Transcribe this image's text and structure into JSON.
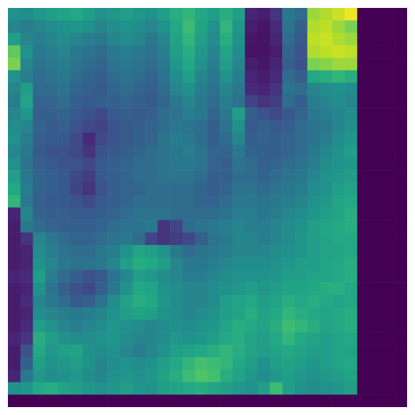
{
  "chart_data": {
    "type": "heatmap",
    "color": "viridis",
    "tick_labels": false,
    "vlim": [
      0,
      100
    ],
    "cells": [
      [
        50,
        48,
        52,
        55,
        58,
        60,
        55,
        50,
        52,
        55,
        52,
        50,
        55,
        62,
        65,
        60,
        55,
        62,
        55,
        10,
        8,
        15,
        40,
        35,
        85,
        88,
        92,
        98,
        0,
        0,
        0,
        0
      ],
      [
        45,
        42,
        45,
        48,
        50,
        52,
        50,
        45,
        48,
        50,
        48,
        45,
        50,
        60,
        68,
        58,
        50,
        65,
        52,
        8,
        6,
        12,
        38,
        30,
        88,
        90,
        85,
        80,
        0,
        0,
        0,
        0
      ],
      [
        55,
        45,
        42,
        45,
        48,
        45,
        42,
        40,
        45,
        48,
        45,
        40,
        45,
        58,
        65,
        55,
        48,
        62,
        50,
        6,
        5,
        10,
        35,
        28,
        90,
        92,
        88,
        85,
        0,
        0,
        0,
        0
      ],
      [
        75,
        50,
        40,
        42,
        45,
        40,
        38,
        35,
        40,
        42,
        40,
        38,
        42,
        55,
        62,
        52,
        45,
        58,
        48,
        5,
        5,
        8,
        32,
        25,
        88,
        90,
        92,
        90,
        0,
        0,
        0,
        0
      ],
      [
        80,
        45,
        38,
        40,
        42,
        38,
        35,
        32,
        38,
        40,
        38,
        35,
        40,
        52,
        60,
        50,
        42,
        55,
        45,
        8,
        6,
        10,
        30,
        25,
        80,
        82,
        85,
        85,
        0,
        0,
        0,
        0
      ],
      [
        50,
        42,
        35,
        38,
        40,
        35,
        32,
        30,
        35,
        38,
        35,
        32,
        38,
        48,
        55,
        45,
        40,
        50,
        42,
        10,
        8,
        12,
        35,
        30,
        60,
        62,
        65,
        62,
        0,
        0,
        0,
        0
      ],
      [
        45,
        55,
        35,
        35,
        38,
        32,
        30,
        28,
        32,
        35,
        32,
        30,
        35,
        45,
        50,
        42,
        38,
        45,
        40,
        12,
        10,
        15,
        38,
        35,
        45,
        48,
        50,
        48,
        0,
        0,
        0,
        0
      ],
      [
        42,
        58,
        32,
        32,
        35,
        30,
        28,
        30,
        30,
        32,
        30,
        28,
        32,
        40,
        45,
        40,
        35,
        42,
        38,
        20,
        15,
        18,
        35,
        30,
        42,
        45,
        48,
        45,
        0,
        0,
        0,
        0
      ],
      [
        45,
        52,
        30,
        30,
        32,
        28,
        25,
        22,
        28,
        30,
        28,
        30,
        35,
        38,
        42,
        40,
        32,
        40,
        55,
        30,
        25,
        22,
        28,
        32,
        40,
        42,
        45,
        48,
        0,
        0,
        0,
        0
      ],
      [
        48,
        45,
        32,
        28,
        30,
        25,
        22,
        20,
        25,
        28,
        30,
        32,
        35,
        40,
        38,
        35,
        30,
        38,
        50,
        28,
        30,
        28,
        30,
        35,
        38,
        40,
        45,
        50,
        0,
        0,
        0,
        0
      ],
      [
        50,
        42,
        30,
        28,
        28,
        22,
        12,
        22,
        25,
        28,
        30,
        32,
        38,
        42,
        40,
        35,
        30,
        35,
        45,
        30,
        32,
        30,
        32,
        35,
        38,
        42,
        48,
        52,
        0,
        0,
        0,
        0
      ],
      [
        45,
        40,
        28,
        25,
        25,
        22,
        15,
        25,
        28,
        30,
        32,
        35,
        38,
        40,
        42,
        38,
        32,
        32,
        40,
        32,
        30,
        30,
        32,
        35,
        40,
        45,
        50,
        55,
        0,
        0,
        0,
        0
      ],
      [
        50,
        38,
        30,
        28,
        25,
        25,
        22,
        28,
        30,
        32,
        35,
        35,
        38,
        40,
        40,
        38,
        32,
        30,
        38,
        35,
        30,
        32,
        35,
        38,
        42,
        48,
        50,
        52,
        0,
        0,
        0,
        0
      ],
      [
        55,
        40,
        32,
        30,
        28,
        22,
        18,
        28,
        30,
        32,
        35,
        35,
        38,
        38,
        38,
        35,
        30,
        30,
        35,
        35,
        32,
        35,
        38,
        40,
        45,
        50,
        52,
        55,
        0,
        0,
        0,
        0
      ],
      [
        60,
        42,
        32,
        30,
        28,
        20,
        15,
        25,
        30,
        32,
        32,
        35,
        35,
        35,
        35,
        32,
        30,
        32,
        38,
        38,
        35,
        38,
        40,
        42,
        48,
        50,
        55,
        58,
        0,
        0,
        0,
        0
      ],
      [
        65,
        40,
        30,
        28,
        28,
        25,
        22,
        28,
        30,
        32,
        35,
        35,
        35,
        35,
        35,
        32,
        32,
        35,
        40,
        40,
        38,
        40,
        42,
        45,
        50,
        52,
        58,
        60,
        0,
        0,
        0,
        0
      ],
      [
        10,
        45,
        32,
        30,
        30,
        28,
        28,
        30,
        32,
        35,
        38,
        38,
        38,
        35,
        35,
        35,
        35,
        38,
        42,
        42,
        40,
        42,
        45,
        48,
        52,
        55,
        58,
        62,
        0,
        0,
        0,
        0
      ],
      [
        8,
        40,
        35,
        32,
        30,
        30,
        30,
        32,
        35,
        38,
        38,
        40,
        15,
        20,
        35,
        38,
        40,
        42,
        45,
        42,
        42,
        45,
        48,
        50,
        55,
        58,
        60,
        62,
        0,
        0,
        0,
        0
      ],
      [
        8,
        15,
        45,
        40,
        35,
        32,
        32,
        35,
        38,
        40,
        35,
        20,
        15,
        18,
        22,
        30,
        38,
        40,
        45,
        45,
        42,
        45,
        48,
        52,
        55,
        58,
        60,
        60,
        0,
        0,
        0,
        0
      ],
      [
        8,
        10,
        48,
        42,
        38,
        35,
        35,
        40,
        42,
        50,
        58,
        55,
        50,
        40,
        35,
        38,
        40,
        42,
        45,
        45,
        45,
        48,
        50,
        52,
        55,
        58,
        58,
        60,
        0,
        0,
        0,
        0
      ],
      [
        8,
        10,
        50,
        45,
        40,
        38,
        38,
        40,
        45,
        55,
        62,
        60,
        55,
        45,
        40,
        40,
        42,
        45,
        48,
        48,
        48,
        50,
        52,
        55,
        55,
        58,
        60,
        62,
        0,
        0,
        0,
        0
      ],
      [
        10,
        12,
        55,
        42,
        35,
        30,
        25,
        28,
        38,
        45,
        55,
        52,
        48,
        45,
        42,
        42,
        45,
        48,
        50,
        50,
        50,
        52,
        55,
        55,
        58,
        58,
        60,
        62,
        0,
        0,
        0,
        0
      ],
      [
        8,
        10,
        50,
        38,
        30,
        25,
        22,
        30,
        40,
        50,
        60,
        58,
        50,
        48,
        45,
        45,
        48,
        50,
        52,
        55,
        52,
        55,
        58,
        58,
        60,
        62,
        62,
        60,
        0,
        0,
        0,
        0
      ],
      [
        8,
        12,
        45,
        40,
        35,
        28,
        30,
        38,
        48,
        58,
        62,
        60,
        52,
        48,
        45,
        45,
        48,
        55,
        58,
        60,
        55,
        58,
        62,
        60,
        62,
        60,
        58,
        60,
        0,
        0,
        0,
        0
      ],
      [
        8,
        10,
        48,
        45,
        42,
        40,
        42,
        45,
        50,
        55,
        58,
        55,
        50,
        48,
        45,
        48,
        50,
        55,
        58,
        62,
        58,
        60,
        65,
        62,
        60,
        58,
        60,
        62,
        0,
        0,
        0,
        0
      ],
      [
        8,
        12,
        55,
        50,
        45,
        42,
        45,
        48,
        52,
        50,
        48,
        45,
        48,
        50,
        48,
        50,
        52,
        58,
        62,
        60,
        58,
        62,
        68,
        65,
        62,
        58,
        60,
        62,
        0,
        0,
        0,
        0
      ],
      [
        10,
        15,
        62,
        55,
        50,
        48,
        48,
        50,
        52,
        48,
        45,
        45,
        48,
        52,
        50,
        52,
        55,
        60,
        62,
        58,
        55,
        60,
        65,
        60,
        58,
        55,
        58,
        60,
        0,
        0,
        0,
        0
      ],
      [
        8,
        25,
        60,
        52,
        55,
        58,
        50,
        48,
        50,
        45,
        42,
        45,
        50,
        55,
        58,
        60,
        62,
        65,
        62,
        58,
        55,
        58,
        60,
        58,
        55,
        55,
        58,
        58,
        0,
        0,
        0,
        0
      ],
      [
        8,
        30,
        55,
        50,
        52,
        55,
        50,
        45,
        48,
        50,
        48,
        50,
        55,
        60,
        65,
        70,
        68,
        65,
        60,
        55,
        50,
        55,
        58,
        55,
        52,
        55,
        58,
        60,
        0,
        0,
        0,
        0
      ],
      [
        10,
        40,
        52,
        48,
        50,
        52,
        48,
        45,
        50,
        52,
        50,
        52,
        58,
        62,
        68,
        72,
        70,
        62,
        58,
        52,
        48,
        52,
        55,
        52,
        50,
        52,
        55,
        58,
        0,
        0,
        0,
        0
      ],
      [
        50,
        52,
        60,
        62,
        58,
        55,
        52,
        50,
        52,
        55,
        52,
        50,
        55,
        58,
        60,
        62,
        58,
        55,
        52,
        50,
        55,
        68,
        55,
        50,
        48,
        50,
        52,
        55,
        0,
        0,
        0,
        0
      ],
      [
        0,
        0,
        0,
        0,
        0,
        0,
        0,
        0,
        0,
        0,
        0,
        0,
        0,
        0,
        0,
        0,
        0,
        0,
        0,
        0,
        0,
        0,
        0,
        0,
        0,
        0,
        0,
        0,
        0,
        0,
        0,
        0
      ]
    ]
  }
}
